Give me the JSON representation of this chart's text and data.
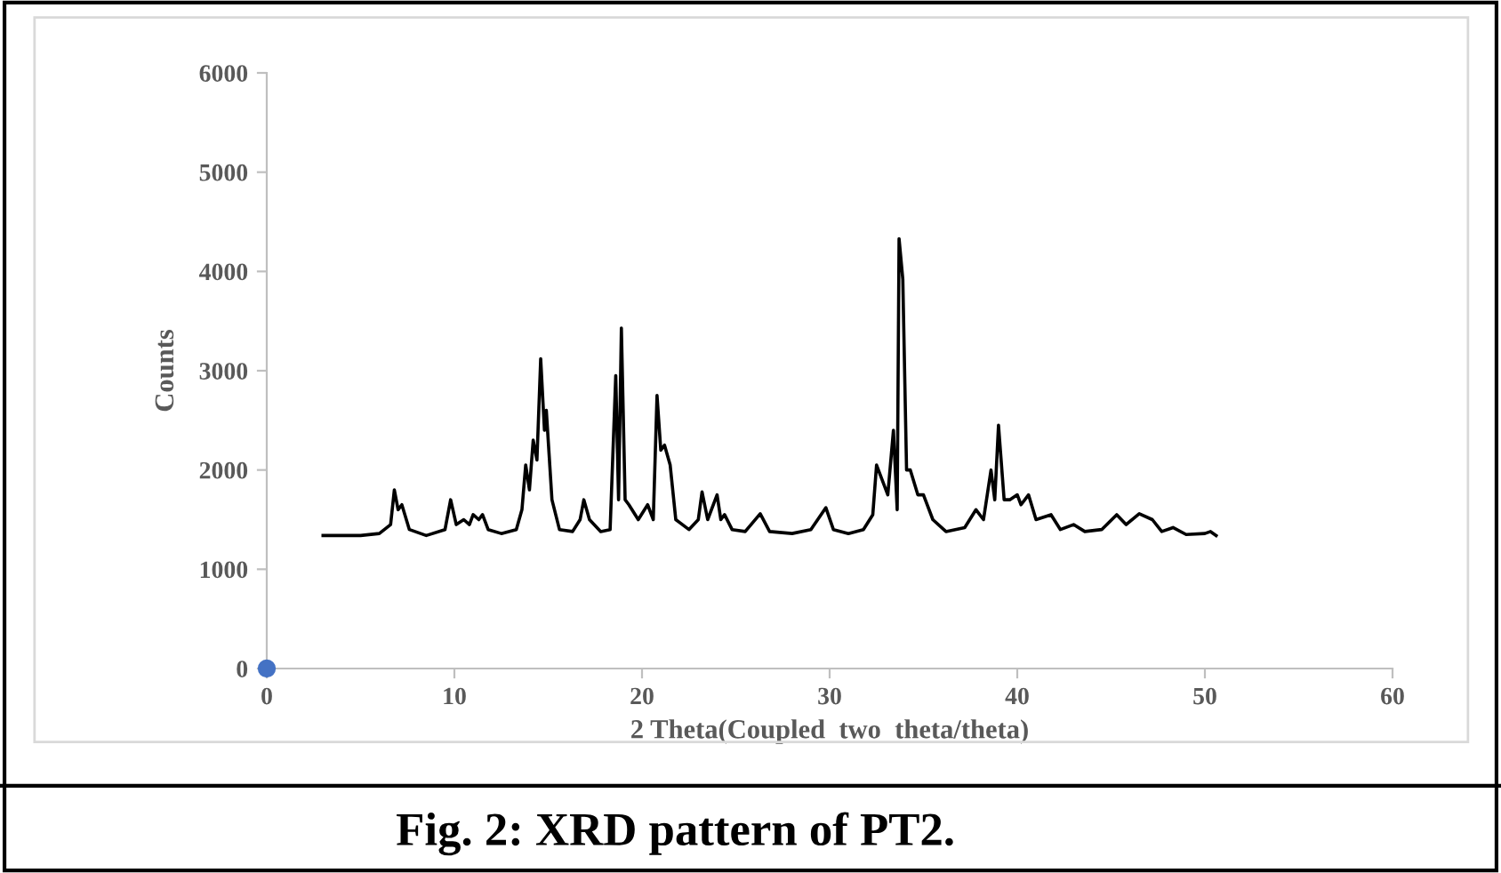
{
  "chart_data": {
    "type": "line",
    "xlabel": "2 Theta(Coupled  two  theta/theta)",
    "ylabel": "Counts",
    "annotations": [
      "Fig. 2: XRD pattern of PT2."
    ],
    "xlim": [
      0,
      60
    ],
    "xticks": [
      0,
      10,
      20,
      30,
      40,
      50,
      60
    ],
    "ylim": [
      0,
      6000
    ],
    "yticks": [
      0,
      1000,
      2000,
      3000,
      4000,
      5000,
      6000
    ],
    "grid": false,
    "legend": false,
    "series": [
      {
        "color": "#000000",
        "marker": "none",
        "x": [
          3.0,
          5.0,
          6.0,
          6.6,
          6.8,
          7.0,
          7.2,
          7.6,
          8.5,
          9.5,
          9.8,
          10.1,
          10.5,
          10.8,
          11.0,
          11.3,
          11.5,
          11.8,
          12.5,
          13.3,
          13.6,
          13.8,
          14.0,
          14.2,
          14.4,
          14.6,
          14.8,
          14.9,
          15.2,
          15.6,
          16.3,
          16.7,
          16.9,
          17.2,
          17.8,
          18.3,
          18.6,
          18.75,
          18.9,
          19.1,
          19.3,
          19.8,
          20.3,
          20.6,
          20.8,
          21.0,
          21.2,
          21.5,
          21.8,
          22.5,
          23.0,
          23.2,
          23.5,
          24.0,
          24.2,
          24.4,
          24.8,
          25.5,
          26.3,
          26.8,
          28.0,
          29.0,
          29.8,
          30.2,
          31.0,
          31.8,
          32.3,
          32.5,
          32.8,
          33.1,
          33.4,
          33.6,
          33.7,
          33.9,
          34.1,
          34.3,
          34.7,
          35.0,
          35.5,
          36.2,
          37.2,
          37.8,
          38.2,
          38.6,
          38.8,
          39.0,
          39.3,
          39.6,
          40.0,
          40.2,
          40.6,
          41.0,
          41.8,
          42.3,
          43.0,
          43.6,
          44.5,
          45.3,
          45.8,
          46.5,
          47.2,
          47.7,
          48.3,
          49.0,
          50.0,
          50.3,
          50.6
        ],
        "values": [
          1340,
          1340,
          1360,
          1450,
          1800,
          1600,
          1650,
          1400,
          1340,
          1400,
          1700,
          1450,
          1500,
          1450,
          1550,
          1500,
          1550,
          1400,
          1360,
          1400,
          1600,
          2050,
          1800,
          2300,
          2100,
          3120,
          2400,
          2600,
          1700,
          1400,
          1380,
          1500,
          1700,
          1500,
          1380,
          1400,
          2950,
          1700,
          3430,
          1700,
          1650,
          1500,
          1650,
          1500,
          2750,
          2200,
          2250,
          2050,
          1500,
          1400,
          1500,
          1780,
          1500,
          1750,
          1500,
          1550,
          1400,
          1380,
          1560,
          1380,
          1360,
          1400,
          1620,
          1400,
          1360,
          1400,
          1550,
          2050,
          1900,
          1750,
          2400,
          1600,
          4330,
          3920,
          2000,
          2000,
          1750,
          1750,
          1500,
          1380,
          1420,
          1600,
          1500,
          2000,
          1700,
          2450,
          1700,
          1700,
          1750,
          1650,
          1750,
          1500,
          1550,
          1400,
          1450,
          1380,
          1400,
          1550,
          1450,
          1560,
          1500,
          1380,
          1420,
          1350,
          1360,
          1380,
          1340
        ]
      },
      {
        "type": "scatter",
        "color": "#4472c4",
        "marker": "circle",
        "x": [
          0
        ],
        "values": [
          0
        ]
      }
    ]
  }
}
